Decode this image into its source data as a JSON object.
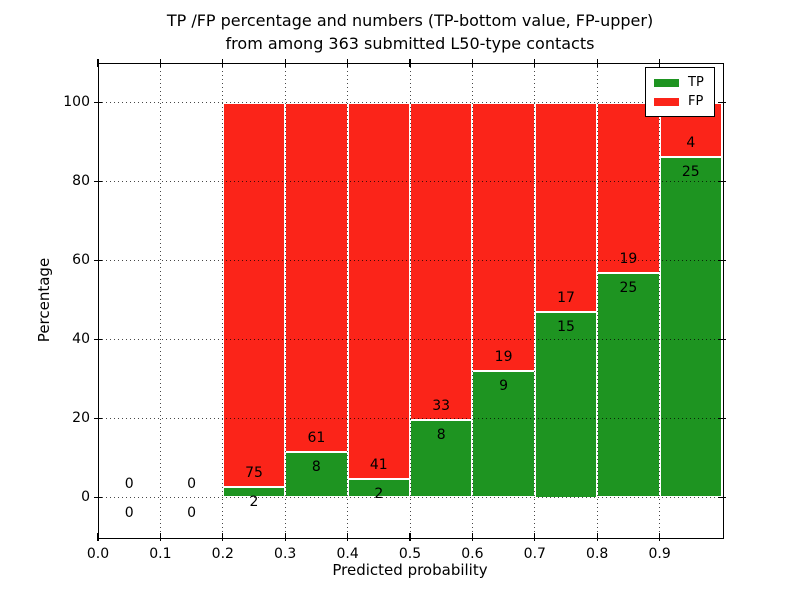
{
  "chart_data": {
    "type": "bar",
    "variant": "stacked-percentage-histogram",
    "title_lines": [
      "TP /FP percentage and numbers (TP-bottom value, FP-upper)",
      "from among 363 submitted L50-type contacts"
    ],
    "xlabel": "Predicted probability",
    "ylabel": "Percentage",
    "xlim": [
      0.0,
      1.0
    ],
    "ylim": [
      -10,
      110
    ],
    "x_ticks": {
      "values": [
        0.0,
        0.1,
        0.2,
        0.3,
        0.4,
        0.5,
        0.6,
        0.7,
        0.8,
        0.9
      ],
      "labels": [
        "0.0",
        "0.1",
        "0.2",
        "0.3",
        "0.4",
        "0.5",
        "0.6",
        "0.7",
        "0.8",
        "0.9"
      ]
    },
    "y_ticks": {
      "values": [
        0,
        20,
        40,
        60,
        80,
        100
      ],
      "labels": [
        "0",
        "20",
        "40",
        "60",
        "80",
        "100"
      ]
    },
    "grid": "dotted",
    "bar_total_percent": 100,
    "series": [
      {
        "name": "TP",
        "color": "#1e9421",
        "position": "bottom"
      },
      {
        "name": "FP",
        "color": "#fb2419",
        "position": "top"
      }
    ],
    "bins": [
      {
        "x0": 0.0,
        "x1": 0.1,
        "tp": 0,
        "fp": 0
      },
      {
        "x0": 0.1,
        "x1": 0.2,
        "tp": 0,
        "fp": 0
      },
      {
        "x0": 0.2,
        "x1": 0.3,
        "tp": 2,
        "fp": 75
      },
      {
        "x0": 0.3,
        "x1": 0.4,
        "tp": 8,
        "fp": 61
      },
      {
        "x0": 0.4,
        "x1": 0.5,
        "tp": 2,
        "fp": 41
      },
      {
        "x0": 0.5,
        "x1": 0.6,
        "tp": 8,
        "fp": 33
      },
      {
        "x0": 0.6,
        "x1": 0.7,
        "tp": 9,
        "fp": 19
      },
      {
        "x0": 0.7,
        "x1": 0.8,
        "tp": 15,
        "fp": 17
      },
      {
        "x0": 0.8,
        "x1": 0.9,
        "tp": 25,
        "fp": 19
      },
      {
        "x0": 0.9,
        "x1": 1.0,
        "tp": 25,
        "fp": 4
      }
    ],
    "legend": {
      "position": "upper-right",
      "entries": [
        "TP",
        "FP"
      ]
    }
  }
}
